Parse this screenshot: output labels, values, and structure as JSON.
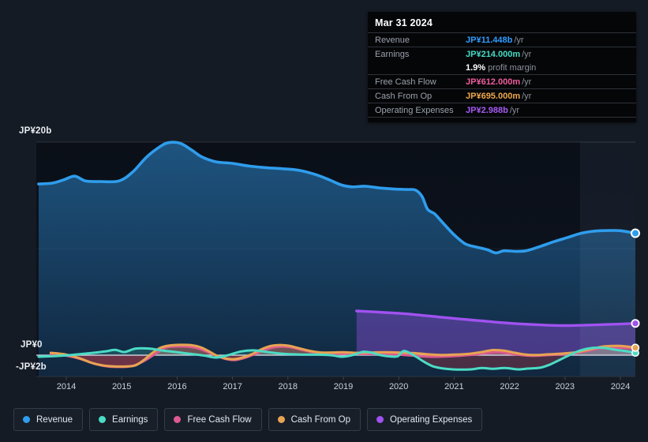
{
  "tooltip": {
    "date": "Mar 31 2024",
    "rows": [
      {
        "label": "Revenue",
        "value": "JP¥11.448b",
        "suffix": "/yr",
        "color": "#2f9dff"
      },
      {
        "label": "Earnings",
        "value": "JP¥214.000m",
        "suffix": "/yr",
        "color": "#45dcc6"
      },
      {
        "label": "Free Cash Flow",
        "value": "JP¥612.000m",
        "suffix": "/yr",
        "color": "#ee5d9d"
      },
      {
        "label": "Cash From Op",
        "value": "JP¥695.000m",
        "suffix": "/yr",
        "color": "#efa84b"
      },
      {
        "label": "Operating Expenses",
        "value": "JP¥2.988b",
        "suffix": "/yr",
        "color": "#a75bf4"
      }
    ],
    "margin": {
      "percent": "1.9%",
      "text": "profit margin"
    }
  },
  "legend": [
    {
      "label": "Revenue",
      "color": "#2f9ded"
    },
    {
      "label": "Earnings",
      "color": "#4bdcc5"
    },
    {
      "label": "Free Cash Flow",
      "color": "#dd5a90"
    },
    {
      "label": "Cash From Op",
      "color": "#e7a452"
    },
    {
      "label": "Operating Expenses",
      "color": "#a052f0"
    }
  ],
  "axis": {
    "y_labels": [
      {
        "text": "JP¥20b",
        "value": 20
      },
      {
        "text": "JP¥0",
        "value": 0
      },
      {
        "text": "-JP¥2b",
        "value": -2
      }
    ],
    "x_labels": [
      "2014",
      "2015",
      "2016",
      "2017",
      "2018",
      "2019",
      "2020",
      "2021",
      "2022",
      "2023",
      "2024"
    ]
  },
  "chart_data": {
    "type": "area",
    "x_unit": "year",
    "xlim": [
      2013.5,
      2024.3
    ],
    "ylim": [
      -2,
      20
    ],
    "y_gridlines": [
      20,
      10,
      0,
      -2
    ],
    "currency": "JP¥ billions",
    "highlight_span": [
      2023.27,
      2024.3
    ],
    "negative_fill_color": "#c03c4c",
    "series": [
      {
        "key": "revenue",
        "name": "Revenue",
        "color": "#2f9ded",
        "points": [
          [
            2013.5,
            16.07
          ],
          [
            2013.75,
            16.15
          ],
          [
            2013.95,
            16.45
          ],
          [
            2014.15,
            16.8
          ],
          [
            2014.35,
            16.35
          ],
          [
            2014.6,
            16.3
          ],
          [
            2014.95,
            16.35
          ],
          [
            2015.2,
            17.2
          ],
          [
            2015.45,
            18.6
          ],
          [
            2015.7,
            19.6
          ],
          [
            2015.85,
            19.95
          ],
          [
            2016.05,
            19.9
          ],
          [
            2016.25,
            19.3
          ],
          [
            2016.45,
            18.6
          ],
          [
            2016.7,
            18.15
          ],
          [
            2017,
            18
          ],
          [
            2017.3,
            17.75
          ],
          [
            2017.6,
            17.6
          ],
          [
            2017.9,
            17.5
          ],
          [
            2018.2,
            17.35
          ],
          [
            2018.5,
            16.95
          ],
          [
            2018.75,
            16.45
          ],
          [
            2018.95,
            16
          ],
          [
            2019.15,
            15.8
          ],
          [
            2019.4,
            15.85
          ],
          [
            2019.65,
            15.7
          ],
          [
            2019.9,
            15.6
          ],
          [
            2020.15,
            15.55
          ],
          [
            2020.3,
            15.5
          ],
          [
            2020.42,
            14.9
          ],
          [
            2020.52,
            13.7
          ],
          [
            2020.65,
            13.25
          ],
          [
            2020.8,
            12.4
          ],
          [
            2021,
            11.3
          ],
          [
            2021.2,
            10.45
          ],
          [
            2021.4,
            10.15
          ],
          [
            2021.6,
            9.9
          ],
          [
            2021.75,
            9.6
          ],
          [
            2021.9,
            9.8
          ],
          [
            2022.1,
            9.75
          ],
          [
            2022.3,
            9.8
          ],
          [
            2022.55,
            10.2
          ],
          [
            2022.8,
            10.65
          ],
          [
            2023.05,
            11.05
          ],
          [
            2023.3,
            11.45
          ],
          [
            2023.55,
            11.65
          ],
          [
            2023.8,
            11.7
          ],
          [
            2024,
            11.68
          ],
          [
            2024.27,
            11.448
          ]
        ]
      },
      {
        "key": "opex",
        "name": "Operating Expenses",
        "color": "#a052f0",
        "points": [
          [
            2019.24,
            4.15
          ],
          [
            2019.5,
            4.08
          ],
          [
            2019.75,
            4
          ],
          [
            2020,
            3.93
          ],
          [
            2020.25,
            3.83
          ],
          [
            2020.5,
            3.7
          ],
          [
            2020.75,
            3.57
          ],
          [
            2021,
            3.45
          ],
          [
            2021.25,
            3.33
          ],
          [
            2021.5,
            3.22
          ],
          [
            2021.75,
            3.1
          ],
          [
            2022,
            3
          ],
          [
            2022.25,
            2.92
          ],
          [
            2022.5,
            2.86
          ],
          [
            2022.75,
            2.8
          ],
          [
            2023,
            2.78
          ],
          [
            2023.25,
            2.8
          ],
          [
            2023.5,
            2.84
          ],
          [
            2023.75,
            2.88
          ],
          [
            2024,
            2.92
          ],
          [
            2024.27,
            2.988
          ]
        ]
      },
      {
        "key": "fcf",
        "name": "Free Cash Flow",
        "color": "#dd5a90",
        "points": [
          [
            2013.72,
            0.1
          ],
          [
            2014,
            -0.05
          ],
          [
            2014.25,
            -0.35
          ],
          [
            2014.5,
            -0.8
          ],
          [
            2014.75,
            -1.05
          ],
          [
            2015,
            -1.1
          ],
          [
            2015.2,
            -1
          ],
          [
            2015.4,
            -0.55
          ],
          [
            2015.6,
            0.1
          ],
          [
            2015.8,
            0.72
          ],
          [
            2016,
            0.82
          ],
          [
            2016.2,
            0.8
          ],
          [
            2016.4,
            0.6
          ],
          [
            2016.6,
            0.2
          ],
          [
            2016.75,
            -0.15
          ],
          [
            2016.9,
            -0.38
          ],
          [
            2017.05,
            -0.45
          ],
          [
            2017.25,
            -0.2
          ],
          [
            2017.45,
            0.2
          ],
          [
            2017.65,
            0.62
          ],
          [
            2017.85,
            0.8
          ],
          [
            2018.05,
            0.75
          ],
          [
            2018.25,
            0.5
          ],
          [
            2018.45,
            0.28
          ],
          [
            2018.65,
            0.15
          ],
          [
            2018.85,
            0.12
          ],
          [
            2019.1,
            0.15
          ],
          [
            2019.35,
            0.12
          ],
          [
            2019.6,
            0.1
          ],
          [
            2019.85,
            0.08
          ],
          [
            2020.1,
            0.02
          ],
          [
            2020.35,
            -0.08
          ],
          [
            2020.6,
            -0.15
          ],
          [
            2020.85,
            -0.12
          ],
          [
            2021.1,
            -0.05
          ],
          [
            2021.35,
            0.05
          ],
          [
            2021.6,
            0.22
          ],
          [
            2021.8,
            0.3
          ],
          [
            2022,
            0.15
          ],
          [
            2022.2,
            0.02
          ],
          [
            2022.4,
            -0.05
          ],
          [
            2022.6,
            -0.02
          ],
          [
            2022.85,
            0.05
          ],
          [
            2023.1,
            0.12
          ],
          [
            2023.35,
            0.35
          ],
          [
            2023.6,
            0.6
          ],
          [
            2023.85,
            0.72
          ],
          [
            2024.1,
            0.68
          ],
          [
            2024.27,
            0.612
          ]
        ]
      },
      {
        "key": "cashop",
        "name": "Cash From Op",
        "color": "#e7a452",
        "points": [
          [
            2013.72,
            0.22
          ],
          [
            2013.97,
            0.08
          ],
          [
            2014.22,
            -0.25
          ],
          [
            2014.45,
            -0.7
          ],
          [
            2014.65,
            -0.95
          ],
          [
            2014.87,
            -1.05
          ],
          [
            2015.08,
            -1.05
          ],
          [
            2015.25,
            -0.95
          ],
          [
            2015.4,
            -0.45
          ],
          [
            2015.55,
            0.2
          ],
          [
            2015.7,
            0.7
          ],
          [
            2015.85,
            0.9
          ],
          [
            2016.05,
            0.97
          ],
          [
            2016.25,
            0.95
          ],
          [
            2016.42,
            0.75
          ],
          [
            2016.58,
            0.35
          ],
          [
            2016.72,
            -0.05
          ],
          [
            2016.87,
            -0.3
          ],
          [
            2017.02,
            -0.38
          ],
          [
            2017.18,
            -0.22
          ],
          [
            2017.35,
            0.1
          ],
          [
            2017.52,
            0.55
          ],
          [
            2017.68,
            0.85
          ],
          [
            2017.82,
            0.95
          ],
          [
            2018,
            0.9
          ],
          [
            2018.2,
            0.65
          ],
          [
            2018.4,
            0.4
          ],
          [
            2018.6,
            0.25
          ],
          [
            2018.8,
            0.25
          ],
          [
            2019,
            0.28
          ],
          [
            2019.25,
            0.22
          ],
          [
            2019.5,
            0.25
          ],
          [
            2019.75,
            0.28
          ],
          [
            2020,
            0.25
          ],
          [
            2020.25,
            0.2
          ],
          [
            2020.5,
            0.1
          ],
          [
            2020.75,
            0.02
          ],
          [
            2021,
            0.05
          ],
          [
            2021.25,
            0.12
          ],
          [
            2021.5,
            0.3
          ],
          [
            2021.7,
            0.48
          ],
          [
            2021.9,
            0.42
          ],
          [
            2022.1,
            0.22
          ],
          [
            2022.3,
            0.05
          ],
          [
            2022.5,
            0.02
          ],
          [
            2022.7,
            0.08
          ],
          [
            2022.95,
            0.15
          ],
          [
            2023.2,
            0.28
          ],
          [
            2023.45,
            0.55
          ],
          [
            2023.7,
            0.82
          ],
          [
            2023.95,
            0.88
          ],
          [
            2024.15,
            0.8
          ],
          [
            2024.27,
            0.695
          ]
        ]
      },
      {
        "key": "earnings",
        "name": "Earnings",
        "color": "#4bdcc5",
        "points": [
          [
            2013.5,
            -0.15
          ],
          [
            2013.8,
            -0.08
          ],
          [
            2014.1,
            0.02
          ],
          [
            2014.4,
            0.18
          ],
          [
            2014.7,
            0.35
          ],
          [
            2014.88,
            0.5
          ],
          [
            2015.05,
            0.3
          ],
          [
            2015.25,
            0.62
          ],
          [
            2015.5,
            0.62
          ],
          [
            2015.75,
            0.42
          ],
          [
            2016,
            0.28
          ],
          [
            2016.25,
            0.12
          ],
          [
            2016.5,
            -0.05
          ],
          [
            2016.7,
            -0.22
          ],
          [
            2016.92,
            0
          ],
          [
            2017.15,
            0.35
          ],
          [
            2017.38,
            0.45
          ],
          [
            2017.65,
            0.28
          ],
          [
            2017.95,
            0.12
          ],
          [
            2018.25,
            0.06
          ],
          [
            2018.55,
            0.05
          ],
          [
            2018.8,
            -0.02
          ],
          [
            2018.98,
            -0.15
          ],
          [
            2019.2,
            0.05
          ],
          [
            2019.35,
            0.32
          ],
          [
            2019.5,
            0.25
          ],
          [
            2019.65,
            0.02
          ],
          [
            2019.85,
            -0.12
          ],
          [
            2019.98,
            -0.1
          ],
          [
            2020.1,
            0.4
          ],
          [
            2020.3,
            -0.1
          ],
          [
            2020.45,
            -0.6
          ],
          [
            2020.62,
            -1.05
          ],
          [
            2020.8,
            -1.25
          ],
          [
            2021.05,
            -1.35
          ],
          [
            2021.3,
            -1.33
          ],
          [
            2021.5,
            -1.2
          ],
          [
            2021.7,
            -1.28
          ],
          [
            2021.92,
            -1.2
          ],
          [
            2022.15,
            -1.33
          ],
          [
            2022.35,
            -1.25
          ],
          [
            2022.55,
            -1.18
          ],
          [
            2022.72,
            -0.9
          ],
          [
            2022.9,
            -0.45
          ],
          [
            2023.1,
            0.05
          ],
          [
            2023.28,
            0.45
          ],
          [
            2023.5,
            0.68
          ],
          [
            2023.7,
            0.68
          ],
          [
            2023.9,
            0.52
          ],
          [
            2024.1,
            0.38
          ],
          [
            2024.27,
            0.214
          ]
        ]
      }
    ]
  }
}
